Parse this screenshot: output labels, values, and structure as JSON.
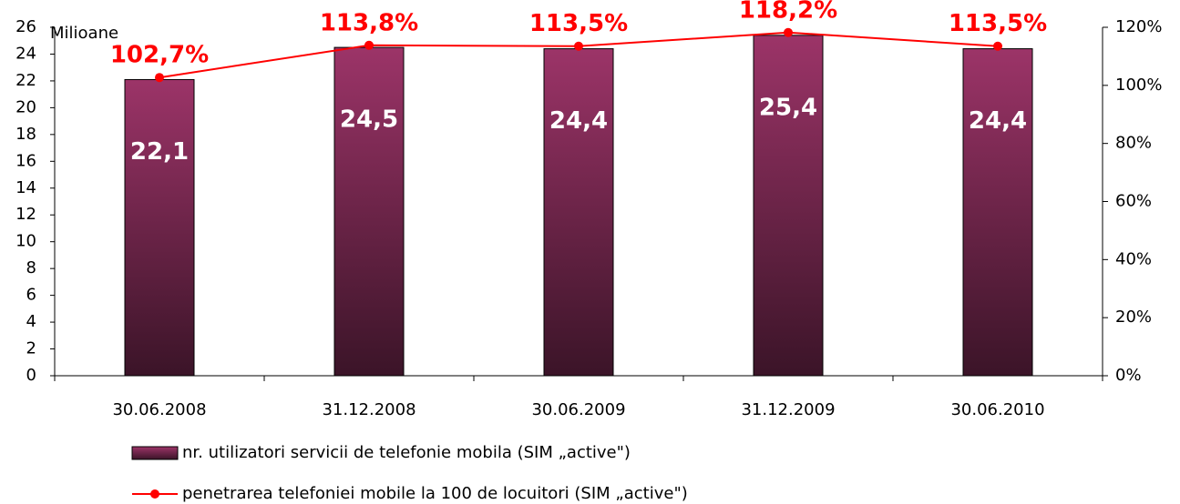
{
  "chart_data": {
    "type": "bar_line",
    "y_label": "Milioane",
    "categories": [
      "30.06.2008",
      "31.12.2008",
      "30.06.2009",
      "31.12.2009",
      "30.06.2010"
    ],
    "series": [
      {
        "name": "nr. utilizatori servicii de telefonie mobila (SIM „active\")",
        "type": "bar",
        "color": "#7a2850",
        "values": [
          22.1,
          24.5,
          24.4,
          25.4,
          24.4
        ],
        "value_labels": [
          "22,1",
          "24,5",
          "24,4",
          "25,4",
          "24,4"
        ]
      },
      {
        "name": "penetrarea telefoniei mobile la 100 de locuitori (SIM „active\")",
        "type": "line",
        "axis": "y2",
        "color": "#ff0000",
        "values": [
          102.7,
          113.8,
          113.5,
          118.2,
          113.5
        ],
        "value_labels": [
          "102,7%",
          "113,8%",
          "113,5%",
          "118,2%",
          "113,5%"
        ]
      }
    ],
    "ylim": [
      0,
      26
    ],
    "yticks": [
      0,
      2,
      4,
      6,
      8,
      10,
      12,
      14,
      16,
      18,
      20,
      22,
      24,
      26
    ],
    "y2lim": [
      0,
      120
    ],
    "y2ticks": [
      {
        "value": 0,
        "label": "0%"
      },
      {
        "value": 20,
        "label": "20%"
      },
      {
        "value": 40,
        "label": "40%"
      },
      {
        "value": 60,
        "label": "60%"
      },
      {
        "value": 80,
        "label": "80%"
      },
      {
        "value": 100,
        "label": "100%"
      },
      {
        "value": 120,
        "label": "120%"
      }
    ]
  }
}
